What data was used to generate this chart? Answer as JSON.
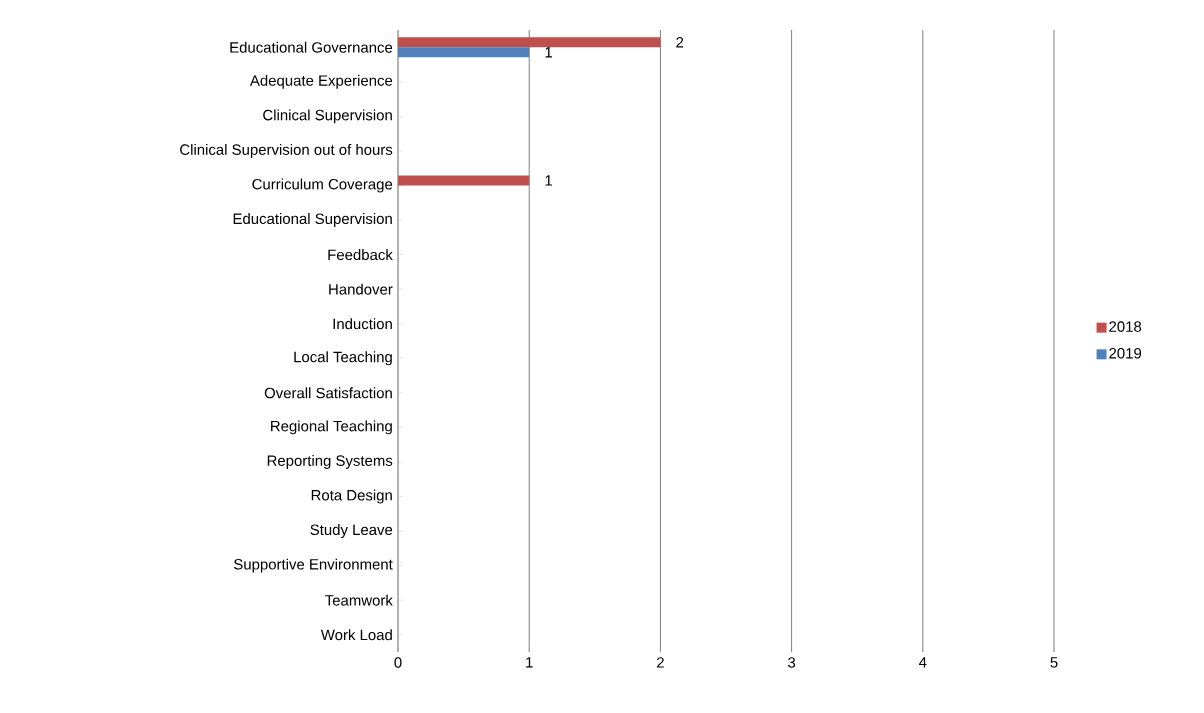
{
  "chart_data": {
    "type": "bar",
    "orientation": "horizontal",
    "categories": [
      "Educational Governance",
      "Adequate Experience",
      "Clinical Supervision",
      "Clinical Supervision out of hours",
      "Curriculum Coverage",
      "Educational Supervision",
      "Feedback",
      "Handover",
      "Induction",
      "Local Teaching",
      "Overall Satisfaction",
      "Regional Teaching",
      "Reporting Systems",
      "Rota Design",
      "Study Leave",
      "Supportive Environment",
      "Teamwork",
      "Work Load"
    ],
    "series": [
      {
        "name": "2018",
        "color": "#c0504d",
        "values": [
          2,
          null,
          null,
          null,
          1,
          null,
          null,
          null,
          null,
          null,
          null,
          null,
          null,
          null,
          null,
          null,
          null,
          null
        ],
        "value_labels": [
          "2",
          null,
          null,
          null,
          "1",
          null,
          null,
          null,
          null,
          null,
          null,
          null,
          null,
          null,
          null,
          null,
          null,
          null
        ]
      },
      {
        "name": "2019",
        "color": "#4f81bd",
        "values": [
          1,
          null,
          null,
          null,
          null,
          null,
          null,
          null,
          null,
          null,
          null,
          null,
          null,
          null,
          null,
          null,
          null,
          null
        ],
        "value_labels": [
          "1",
          null,
          null,
          null,
          null,
          null,
          null,
          null,
          null,
          null,
          null,
          null,
          null,
          null,
          null,
          null,
          null,
          null
        ]
      }
    ],
    "xlim": [
      0,
      5
    ],
    "xticks": [
      0,
      1,
      2,
      3,
      4,
      5
    ],
    "grid": "x",
    "legend": "right"
  }
}
